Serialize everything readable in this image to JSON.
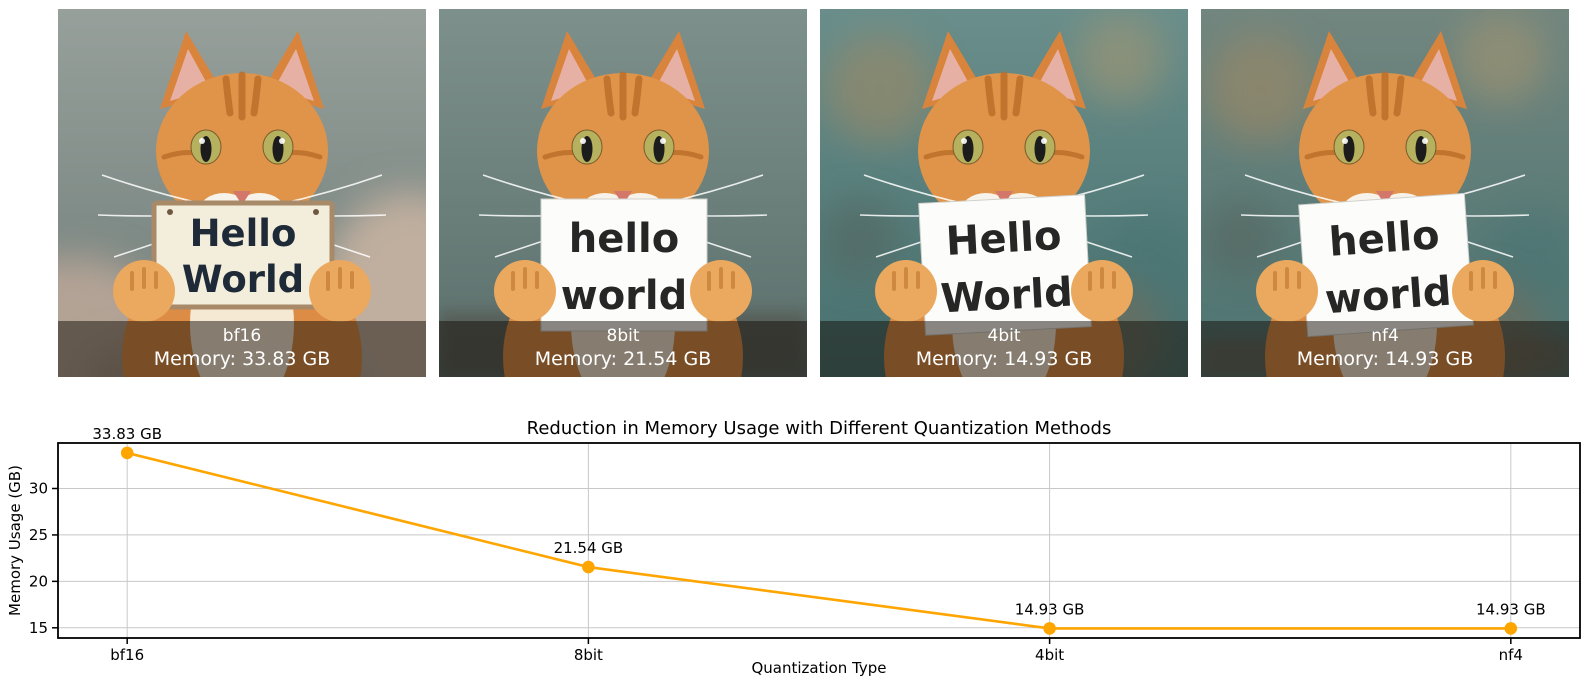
{
  "page": {
    "background": "#ffffff"
  },
  "panels": [
    {
      "label": "bf16",
      "memory_text": "Memory: 33.83 GB",
      "sign_lines": [
        "Hello",
        "World"
      ],
      "sign_style": "framed",
      "variant": "fluffy",
      "bg": [
        "#97a09b",
        "#6f7d79"
      ]
    },
    {
      "label": "8bit",
      "memory_text": "Memory: 21.54 GB",
      "sign_lines": [
        "hello",
        "world"
      ],
      "sign_style": "plain",
      "variant": "wall",
      "bg": [
        "#7d908c",
        "#5a6f6b"
      ]
    },
    {
      "label": "4bit",
      "memory_text": "Memory: 14.93 GB",
      "sign_lines": [
        "Hello",
        "World"
      ],
      "sign_style": "plain",
      "variant": "bokeh",
      "bg": [
        "#6a8e8b",
        "#46706e"
      ]
    },
    {
      "label": "nf4",
      "memory_text": "Memory: 14.93 GB",
      "sign_lines": [
        "hello",
        "world"
      ],
      "sign_style": "plain",
      "variant": "bokeh-kitten",
      "bg": [
        "#72867f",
        "#4c7472"
      ]
    }
  ],
  "caption_bg": "rgba(22,16,10,0.5)",
  "chart_data": {
    "type": "line",
    "categories": [
      "bf16",
      "8bit",
      "4bit",
      "nf4"
    ],
    "values": [
      33.83,
      21.54,
      14.93,
      14.93
    ],
    "point_labels": [
      "33.83 GB",
      "21.54 GB",
      "14.93 GB",
      "14.93 GB"
    ],
    "title": "Reduction in Memory Usage with Different Quantization Methods",
    "xlabel": "Quantization Type",
    "ylabel": "Memory Usage (GB)",
    "yticks": [
      15,
      20,
      25,
      30
    ],
    "ylim": [
      13.9,
      34.9
    ],
    "grid": true,
    "legend": false,
    "line_color": "#FFA500",
    "marker": "o",
    "grid_color": "#c8c8c8",
    "axis_color": "#000000"
  }
}
